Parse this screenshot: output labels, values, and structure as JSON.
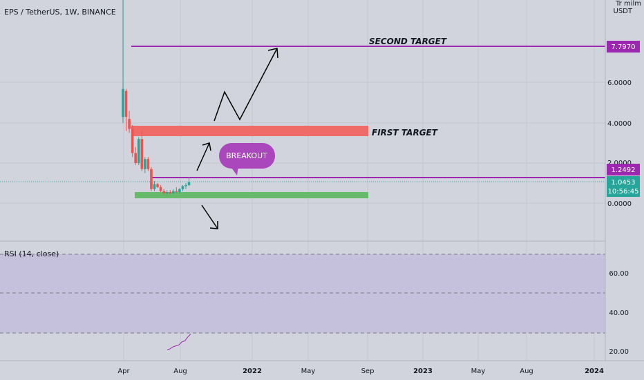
{
  "header": {
    "symbol_title": "EPS / TetherUS, 1W, BINANCE",
    "scale_label": "Tr milm",
    "currency": "USDT"
  },
  "price_pane": {
    "y_ticks": [
      "6.0000",
      "4.0000",
      "2.0000",
      "0.0000"
    ],
    "price_labels": {
      "second_target": "7.7970",
      "breakout_level": "1.2492",
      "last_price": "1.0453",
      "countdown": "10:56:45"
    }
  },
  "annotations": {
    "second_target": "SECOND TARGET",
    "first_target": "FIRST TARGET",
    "breakout": "BREAKOUT"
  },
  "rsi_pane": {
    "title": "RSI (14, close)",
    "y_ticks": [
      "60.00",
      "40.00",
      "20.00"
    ]
  },
  "x_axis": {
    "labels": [
      "Apr",
      "Aug",
      "2022",
      "May",
      "Sep",
      "2023",
      "May",
      "Aug",
      "2024"
    ]
  },
  "colors": {
    "background": "#d1d4dc",
    "up_candle": "#26a69a",
    "down_candle": "#ef5350",
    "target_line": "#9c27b0",
    "breakout_bubble": "#ab47bc",
    "first_target_zone": "#ef5350",
    "support_zone": "#4caf50",
    "last_price_label": "#26a69a",
    "rsi_line": "#9c27b0",
    "rsi_band": "#c5c0dc"
  },
  "chart_data": {
    "type": "candlestick",
    "timeframe": "1W",
    "y_unit": "USDT",
    "candles": [
      {
        "o": 4.3,
        "h": 22.0,
        "l": 4.0,
        "c": 5.7
      },
      {
        "o": 5.6,
        "h": 5.7,
        "l": 3.6,
        "c": 4.3
      },
      {
        "o": 4.2,
        "h": 4.6,
        "l": 3.5,
        "c": 3.7
      },
      {
        "o": 3.7,
        "h": 3.9,
        "l": 2.3,
        "c": 2.5
      },
      {
        "o": 2.5,
        "h": 2.8,
        "l": 1.9,
        "c": 2.0
      },
      {
        "o": 2.0,
        "h": 3.3,
        "l": 1.9,
        "c": 3.2
      },
      {
        "o": 3.2,
        "h": 3.6,
        "l": 1.6,
        "c": 1.7
      },
      {
        "o": 1.7,
        "h": 2.3,
        "l": 1.5,
        "c": 2.2
      },
      {
        "o": 2.2,
        "h": 2.3,
        "l": 1.6,
        "c": 1.7
      },
      {
        "o": 1.7,
        "h": 1.8,
        "l": 0.6,
        "c": 0.7
      },
      {
        "o": 0.7,
        "h": 1.1,
        "l": 0.6,
        "c": 0.95
      },
      {
        "o": 0.95,
        "h": 1.0,
        "l": 0.75,
        "c": 0.8
      },
      {
        "o": 0.8,
        "h": 0.9,
        "l": 0.55,
        "c": 0.6
      },
      {
        "o": 0.6,
        "h": 0.7,
        "l": 0.4,
        "c": 0.5
      },
      {
        "o": 0.5,
        "h": 0.65,
        "l": 0.4,
        "c": 0.55
      },
      {
        "o": 0.55,
        "h": 0.65,
        "l": 0.45,
        "c": 0.5
      },
      {
        "o": 0.5,
        "h": 0.7,
        "l": 0.45,
        "c": 0.6
      },
      {
        "o": 0.6,
        "h": 0.8,
        "l": 0.5,
        "c": 0.55
      },
      {
        "o": 0.55,
        "h": 0.75,
        "l": 0.5,
        "c": 0.7
      },
      {
        "o": 0.7,
        "h": 0.9,
        "l": 0.6,
        "c": 0.85
      },
      {
        "o": 0.85,
        "h": 1.0,
        "l": 0.7,
        "c": 0.9
      },
      {
        "o": 0.9,
        "h": 1.3,
        "l": 0.85,
        "c": 1.05
      }
    ],
    "zones": {
      "first_target": [
        3.35,
        3.85
      ],
      "support": [
        0.2,
        0.5
      ]
    },
    "levels": {
      "second_target": 7.797,
      "breakout": 1.2492,
      "last_price": 1.0453
    },
    "rsi": [
      21.5,
      22.0,
      23.0,
      23.5,
      24.0,
      25.5,
      26.0,
      28.0,
      29.5
    ],
    "rsi_bands": [
      70,
      50,
      30
    ]
  }
}
